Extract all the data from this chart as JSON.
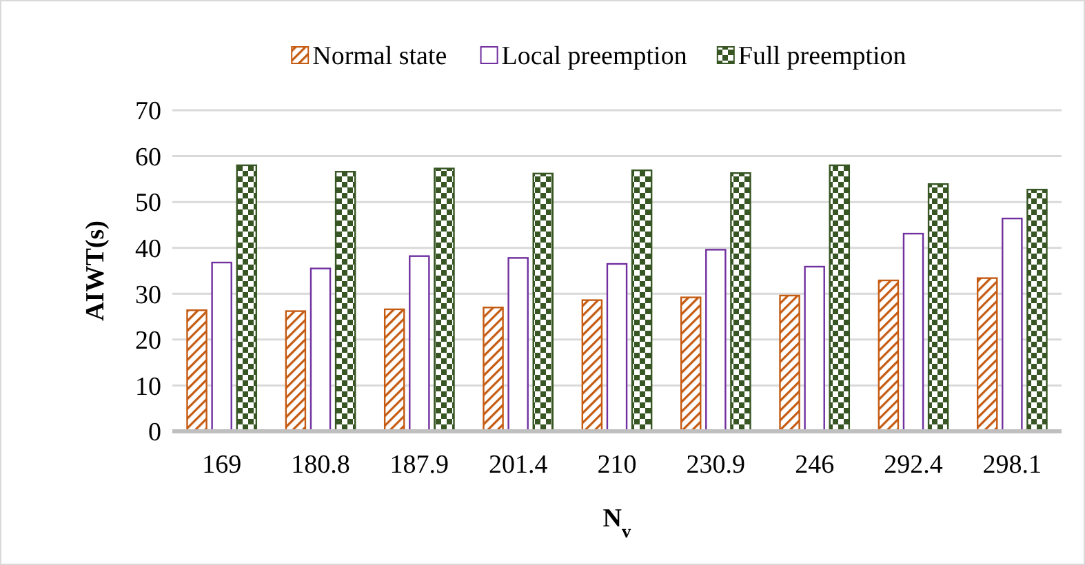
{
  "chart_data": {
    "type": "bar",
    "xlabel": "N$_{v}$",
    "ylabel": "AIWT(s)",
    "categories": [
      "169",
      "180.8",
      "187.9",
      "201.4",
      "210",
      "230.9",
      "246",
      "292.4",
      "298.1"
    ],
    "series": [
      {
        "name": "Normal state",
        "color": "#c55a11",
        "values": [
          26.4,
          26.2,
          26.6,
          27.0,
          28.6,
          29.2,
          29.6,
          32.9,
          33.4
        ]
      },
      {
        "name": "Local preemption",
        "color": "#7030a0",
        "values": [
          36.8,
          35.5,
          38.2,
          37.8,
          36.5,
          39.6,
          35.9,
          43.1,
          46.4
        ]
      },
      {
        "name": "Full preemption",
        "color": "#375623",
        "values": [
          58.0,
          56.6,
          57.3,
          56.2,
          56.9,
          56.3,
          58.0,
          53.9,
          52.7
        ]
      }
    ],
    "ylim": [
      0,
      70
    ],
    "yticks": [
      0,
      10,
      20,
      30,
      40,
      50,
      60,
      70
    ],
    "grid": "y",
    "legend": "top"
  }
}
